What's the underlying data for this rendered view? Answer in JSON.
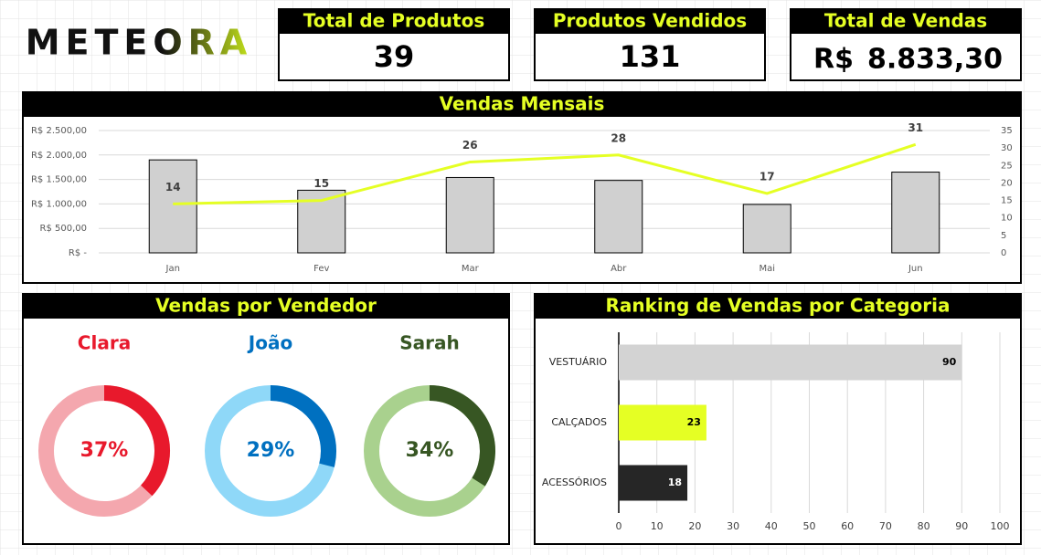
{
  "logo": "METEORA",
  "kpis": [
    {
      "title": "Total de Produtos",
      "value": 39
    },
    {
      "title": "Produtos Vendidos",
      "value": 131
    },
    {
      "title": "Total de Vendas",
      "currency": "R$",
      "value": "8.833,30"
    }
  ],
  "chart_data": [
    {
      "type": "combo",
      "title": "Vendas Mensais",
      "categories": [
        "Jan",
        "Fev",
        "Mar",
        "Abr",
        "Mai",
        "Jun"
      ],
      "series": [
        {
          "type": "bar",
          "color": "#d0d0d0",
          "values": [
            1900,
            1280,
            1540,
            1480,
            990,
            1650
          ]
        },
        {
          "type": "line",
          "axis": "y2",
          "color": "#e5ff24",
          "values": [
            14,
            15,
            26,
            28,
            17,
            31
          ]
        }
      ],
      "ylim": [
        0,
        2500
      ],
      "yticks": [
        {
          "value": 0,
          "label": "R$ -"
        },
        {
          "value": 500,
          "label": "R$ 500,00"
        },
        {
          "value": 1000,
          "label": "R$ 1.000,00"
        },
        {
          "value": 1500,
          "label": "R$ 1.500,00"
        },
        {
          "value": 2000,
          "label": "R$ 2.000,00"
        },
        {
          "value": 2500,
          "label": "R$ 2.500,00"
        }
      ],
      "y2lim": [
        0,
        35
      ],
      "y2ticks": [
        0,
        5,
        10,
        15,
        20,
        25,
        30,
        35
      ],
      "grid": true
    },
    {
      "type": "donut",
      "title": "Vendas por Vendedor",
      "series": [
        {
          "name": "Clara",
          "color": "#e8192c",
          "track_color": "#f4a7ae",
          "values": [
            37
          ],
          "value_labels": [
            "37%"
          ]
        },
        {
          "name": "João",
          "color": "#0070c0",
          "track_color": "#8fd8f8",
          "values": [
            29
          ],
          "value_labels": [
            "29%"
          ]
        },
        {
          "name": "Sarah",
          "color": "#375623",
          "track_color": "#a9d18e",
          "values": [
            34
          ],
          "value_labels": [
            "34%"
          ]
        }
      ]
    },
    {
      "type": "hbar",
      "title": "Ranking de Vendas por Categoria",
      "categories": [
        "VESTUÁRIO",
        "CALÇADOS",
        "ACESSÓRIOS"
      ],
      "values": [
        90,
        23,
        18
      ],
      "colors": [
        "#d3d3d3",
        "#e5ff24",
        "#262626"
      ],
      "xlim": [
        0,
        100
      ],
      "xticks": [
        0,
        10,
        20,
        30,
        40,
        50,
        60,
        70,
        80,
        90,
        100
      ],
      "grid": true
    }
  ]
}
